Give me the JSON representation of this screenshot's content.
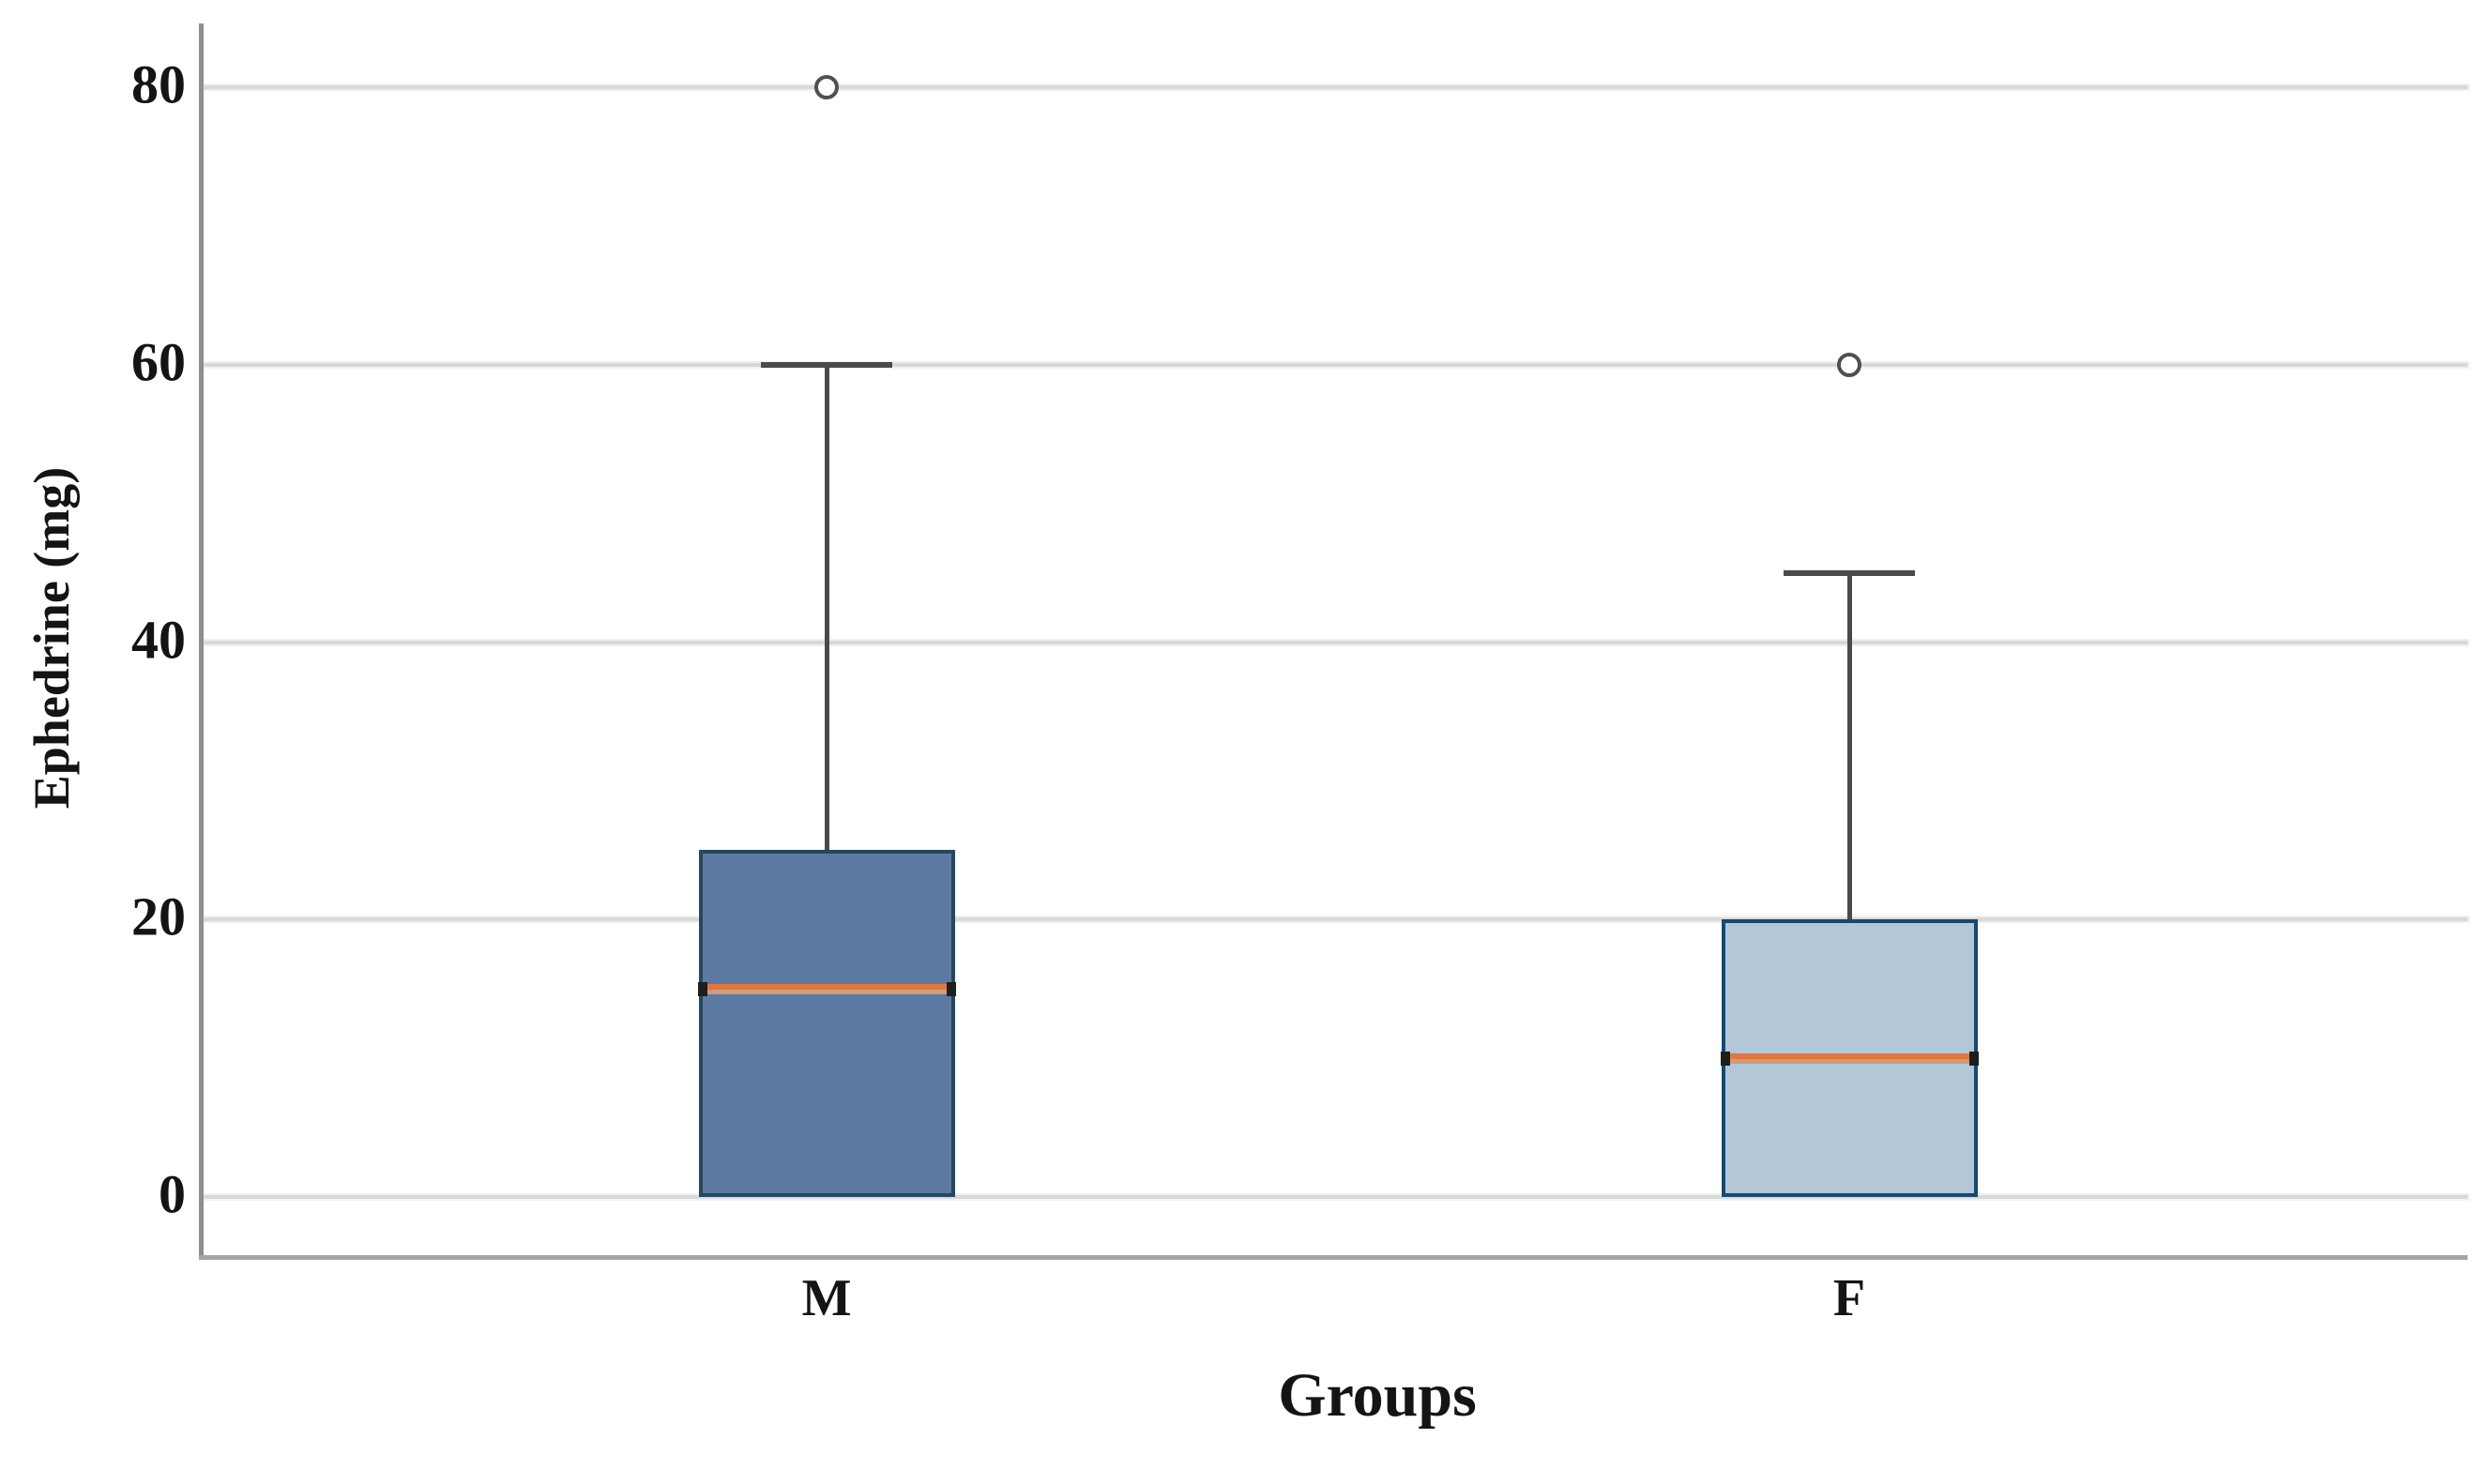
{
  "figure": {
    "background": "#ffffff",
    "grid_color": "#d9d9d9",
    "y_spine_color": "#8f8f8f",
    "x_axis_color": "#a6a6a6",
    "whisker_color": "#4a4a4a",
    "outlier_stroke": "#4f4f4f",
    "median_color": "#e2763b",
    "median_soft_color": "#cf9c79"
  },
  "chart_data": {
    "type": "boxplot",
    "title": "",
    "xlabel": "Groups",
    "ylabel": "Ephedrine (mg)",
    "ylim": [
      -4.5,
      85
    ],
    "yticks": [
      0,
      20,
      40,
      60,
      80
    ],
    "ytick_labels": [
      "0",
      "20",
      "40",
      "60",
      "80"
    ],
    "grid": "horizontal",
    "legend": "none",
    "categories": [
      "M",
      "F"
    ],
    "groups": [
      {
        "label": "M",
        "whisker_low": 0,
        "q1": 0,
        "median": 15,
        "q3": 25,
        "whisker_high": 60,
        "outliers": [
          80
        ],
        "box_fill": "#5d7aa2",
        "box_border": "#24485e"
      },
      {
        "label": "F",
        "whisker_low": 0,
        "q1": 0,
        "median": 10,
        "q3": 20,
        "whisker_high": 45,
        "outliers": [
          60
        ],
        "box_fill": "#b3c7d8",
        "box_border": "#17496d"
      }
    ]
  }
}
